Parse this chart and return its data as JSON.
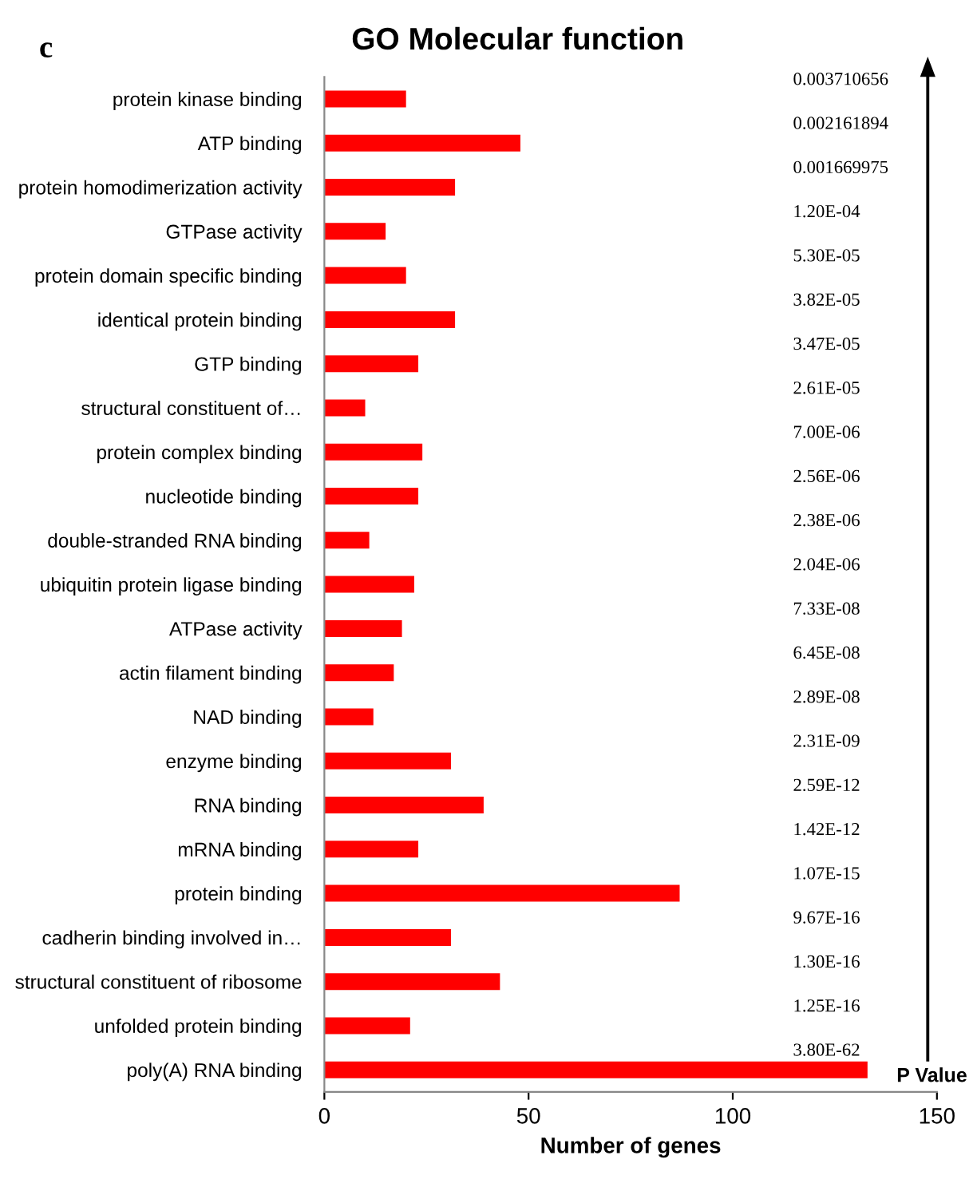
{
  "chart_data": {
    "type": "bar",
    "orientation": "horizontal",
    "title": "GO Molecular function",
    "xlabel": "Number of genes",
    "categories": [
      "protein kinase binding",
      "ATP binding",
      "protein homodimerization activity",
      "GTPase activity",
      "protein domain specific binding",
      "identical protein binding",
      "GTP binding",
      "structural constituent of…",
      "protein complex binding",
      "nucleotide binding",
      "double-stranded RNA binding",
      "ubiquitin protein ligase binding",
      "ATPase activity",
      "actin filament binding",
      "NAD binding",
      "enzyme binding",
      "RNA binding",
      "mRNA binding",
      "protein binding",
      "cadherin binding involved in…",
      "structural constituent of ribosome",
      "unfolded protein binding",
      "poly(A) RNA binding"
    ],
    "values": [
      20,
      48,
      32,
      15,
      20,
      32,
      23,
      10,
      24,
      23,
      11,
      22,
      19,
      17,
      12,
      31,
      39,
      23,
      87,
      31,
      43,
      21,
      133
    ],
    "color": "#ff0000",
    "xlim": [
      0,
      150
    ],
    "xticks": [
      0,
      50,
      100,
      150
    ],
    "grid": false,
    "legend": false,
    "annotations": [
      "c",
      "P Value",
      "0.003710656",
      "0.002161894",
      "0.001669975",
      "1.20E-04",
      "5.30E-05",
      "3.82E-05",
      "3.47E-05",
      "2.61E-05",
      "7.00E-06",
      "2.56E-06",
      "2.38E-06",
      "2.04E-06",
      "7.33E-08",
      "6.45E-08",
      "2.89E-08",
      "2.31E-09",
      "2.59E-12",
      "1.42E-12",
      "1.07E-15",
      "9.67E-16",
      "1.30E-16",
      "1.25E-16",
      "3.80E-62"
    ]
  }
}
